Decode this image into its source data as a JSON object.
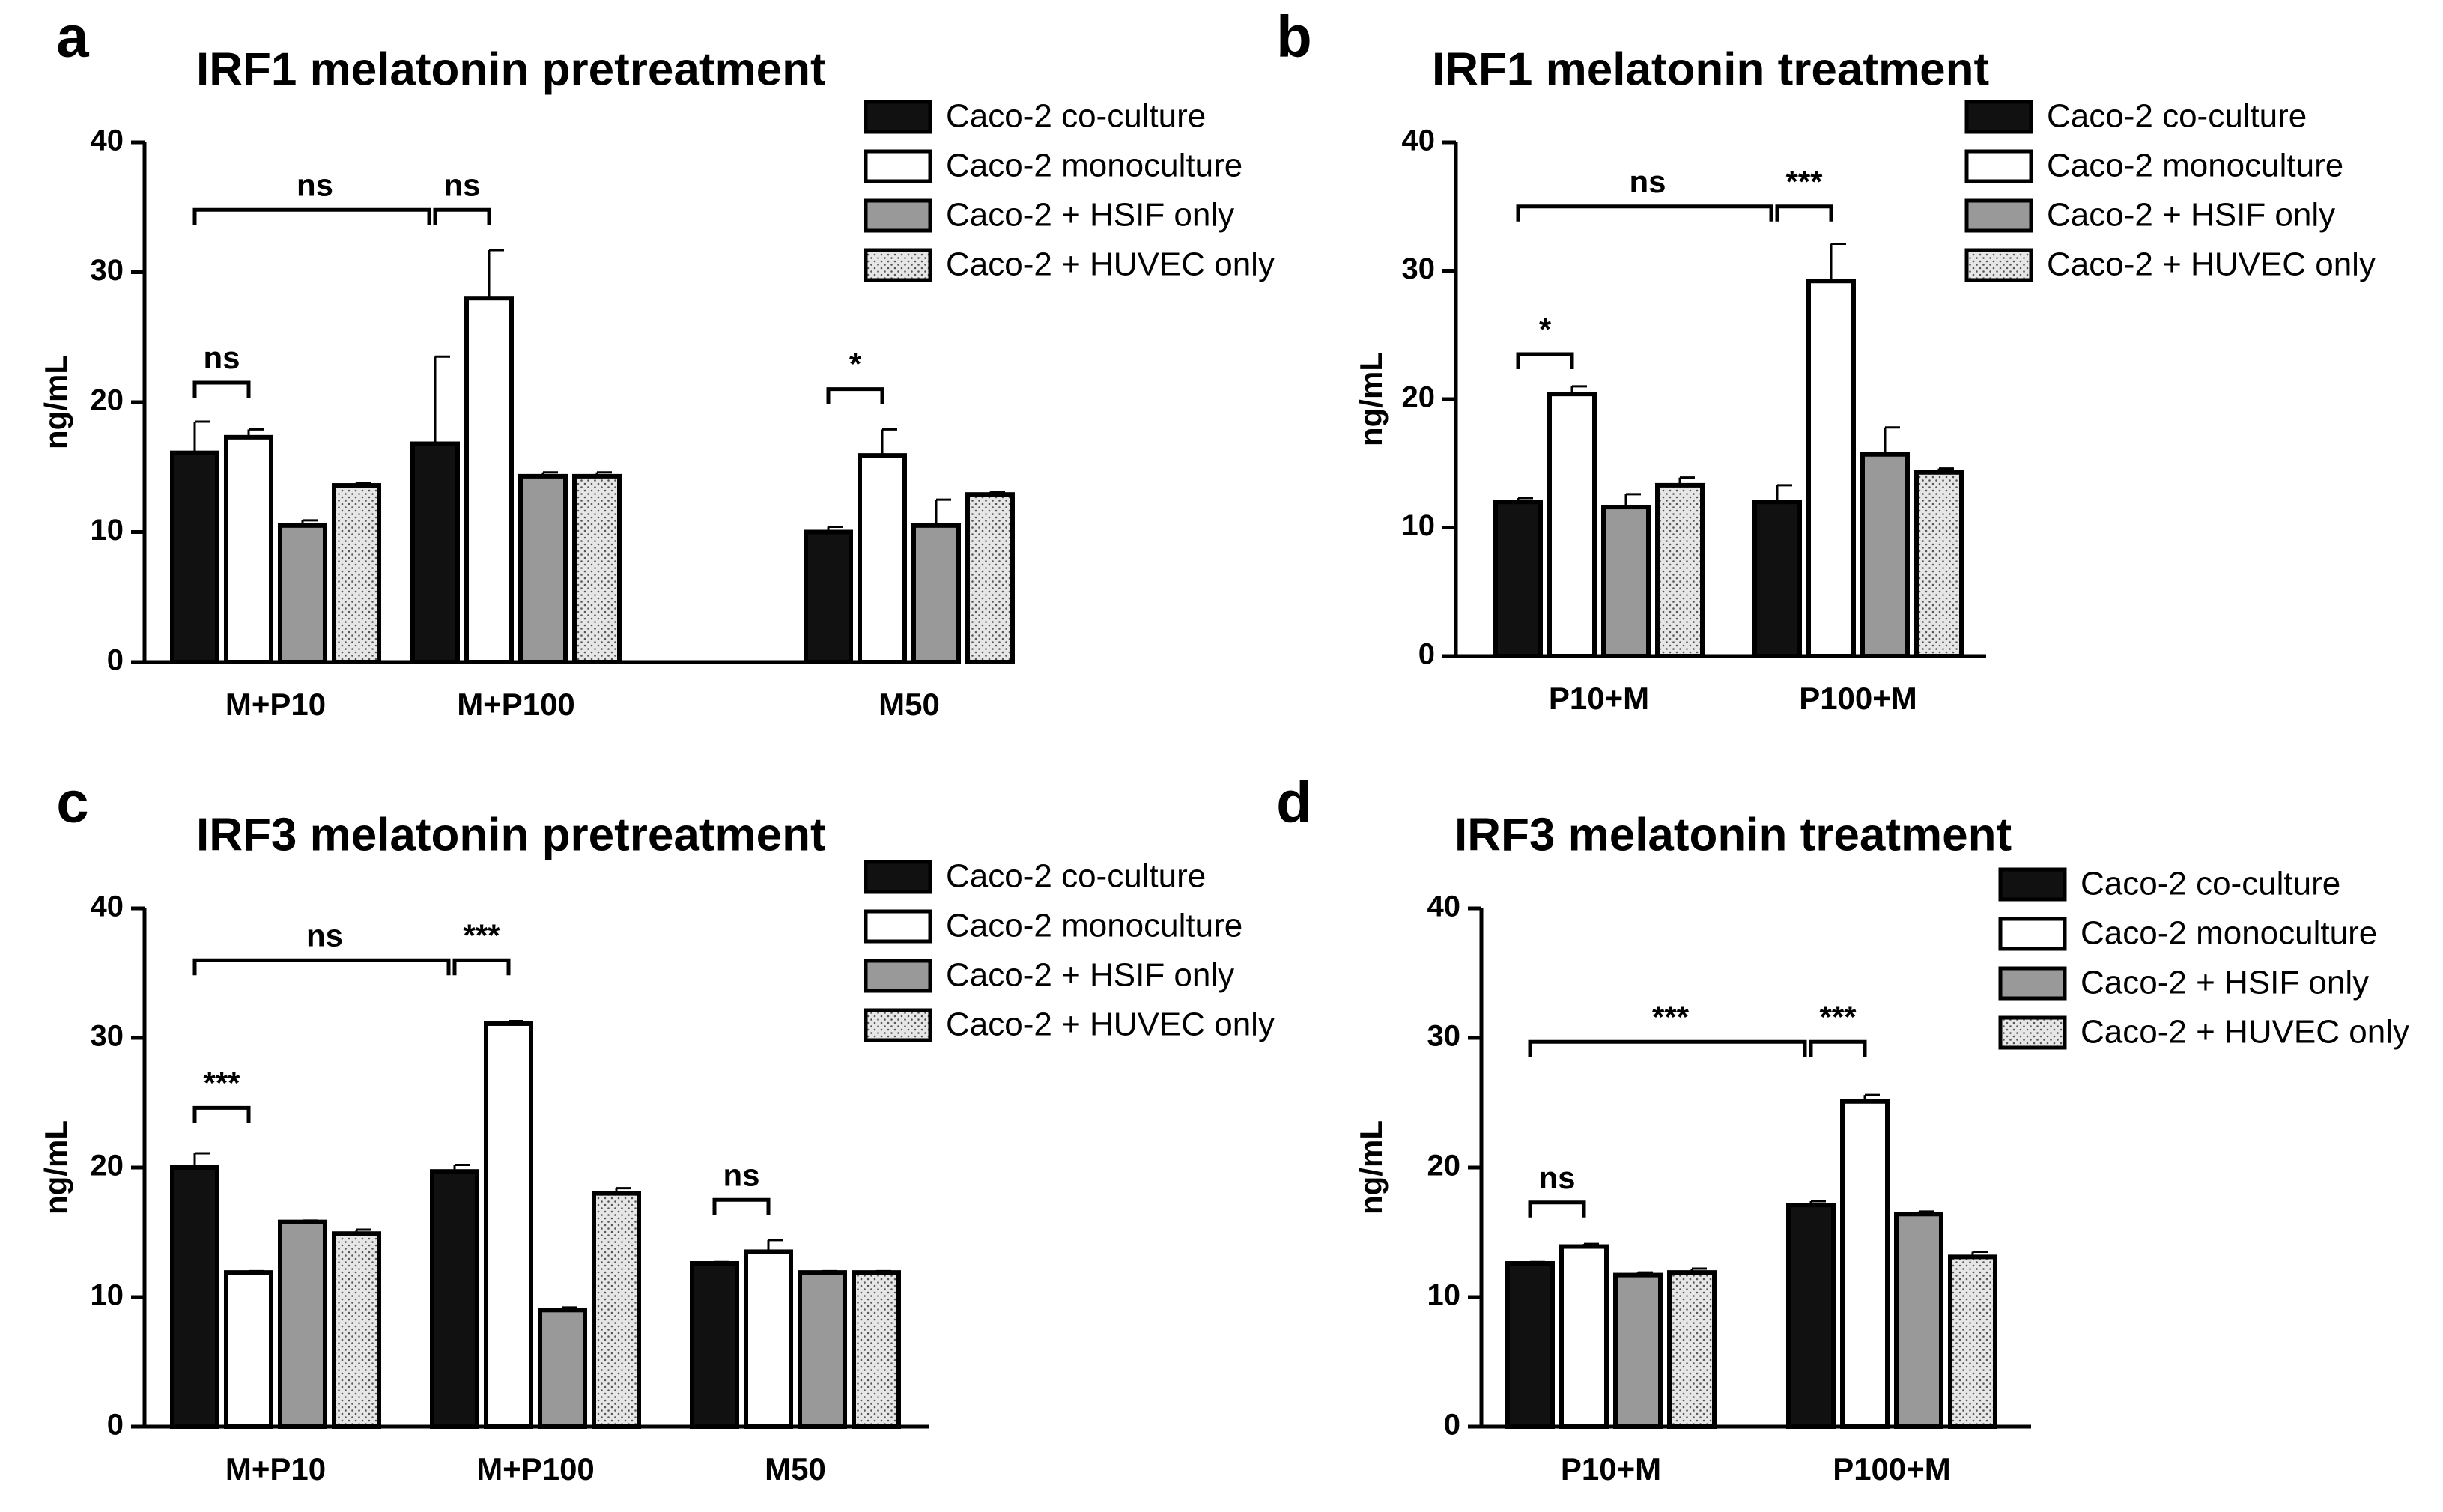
{
  "legend_entries": [
    "Caco-2 co-culture",
    "Caco-2 monoculture",
    "Caco-2 + HSIF only",
    "Caco-2 + HUVEC only"
  ],
  "legend_fills": [
    "#111111",
    "#ffffff",
    "#999999",
    "dots"
  ],
  "chart_data": [
    {
      "panel": "a",
      "type": "bar",
      "title": "IRF1 melatonin pretreatment",
      "ylabel": "ng/mL",
      "xlabel": "",
      "ylim": [
        0,
        40
      ],
      "yticks": [
        0,
        10,
        20,
        30,
        40
      ],
      "categories": [
        "M+P10",
        "M+P100",
        "M50"
      ],
      "series": [
        {
          "name": "Caco-2 co-culture",
          "values": [
            16.1,
            16.8,
            10.0
          ],
          "errors": [
            2.4,
            6.7,
            0.4
          ]
        },
        {
          "name": "Caco-2 monoculture",
          "values": [
            17.3,
            28.0,
            15.9
          ],
          "errors": [
            0.6,
            3.7,
            2.0
          ]
        },
        {
          "name": "Caco-2 + HSIF only",
          "values": [
            10.5,
            14.3,
            10.5
          ],
          "errors": [
            0.4,
            0.3,
            2.0
          ]
        },
        {
          "name": "Caco-2 + HUVEC only",
          "values": [
            13.6,
            14.3,
            12.9
          ],
          "errors": [
            0.2,
            0.3,
            0.2
          ]
        }
      ],
      "annotations": [
        {
          "label": "ns",
          "from": [
            0,
            0
          ],
          "to": [
            0,
            1
          ],
          "level": 21.5
        },
        {
          "label": "ns",
          "from": [
            0,
            0
          ],
          "to": [
            1,
            0
          ],
          "level": 34.8
        },
        {
          "label": "ns",
          "from": [
            1,
            0
          ],
          "to": [
            1,
            1
          ],
          "level": 34.8
        },
        {
          "label": "*",
          "from": [
            2,
            0
          ],
          "to": [
            2,
            1
          ],
          "level": 21.0
        }
      ]
    },
    {
      "panel": "b",
      "type": "bar",
      "title": "IRF1 melatonin treatment",
      "ylabel": "ng/mL",
      "xlabel": "",
      "ylim": [
        0,
        40
      ],
      "yticks": [
        0,
        10,
        20,
        30,
        40
      ],
      "categories": [
        "P10+M",
        "P100+M"
      ],
      "series": [
        {
          "name": "Caco-2 co-culture",
          "values": [
            12.0,
            12.0
          ],
          "errors": [
            0.3,
            1.3
          ]
        },
        {
          "name": "Caco-2 monoculture",
          "values": [
            20.4,
            29.2
          ],
          "errors": [
            0.6,
            2.9
          ]
        },
        {
          "name": "Caco-2 + HSIF only",
          "values": [
            11.6,
            15.7
          ],
          "errors": [
            1.0,
            2.1
          ]
        },
        {
          "name": "Caco-2 + HUVEC only",
          "values": [
            13.3,
            14.3
          ],
          "errors": [
            0.6,
            0.3
          ]
        }
      ],
      "annotations": [
        {
          "label": "*",
          "from": [
            0,
            0
          ],
          "to": [
            0,
            1
          ],
          "level": 23.5
        },
        {
          "label": "ns",
          "from": [
            0,
            0
          ],
          "to": [
            1,
            0
          ],
          "level": 35.0
        },
        {
          "label": "***",
          "from": [
            1,
            0
          ],
          "to": [
            1,
            1
          ],
          "level": 35.0
        }
      ]
    },
    {
      "panel": "c",
      "type": "bar",
      "title": "IRF3 melatonin pretreatment",
      "ylabel": "ng/mL",
      "xlabel": "",
      "ylim": [
        0,
        40
      ],
      "yticks": [
        0,
        10,
        20,
        30,
        40
      ],
      "categories": [
        "M+P10",
        "M+P100",
        "M50"
      ],
      "series": [
        {
          "name": "Caco-2 co-culture",
          "values": [
            20.0,
            19.7,
            12.6
          ],
          "errors": [
            1.1,
            0.5,
            0.1
          ]
        },
        {
          "name": "Caco-2 monoculture",
          "values": [
            11.9,
            31.1,
            13.5
          ],
          "errors": [
            0.1,
            0.2,
            0.9
          ]
        },
        {
          "name": "Caco-2 + HSIF only",
          "values": [
            15.8,
            9.0,
            11.9
          ],
          "errors": [
            0.1,
            0.2,
            0.1
          ]
        },
        {
          "name": "Caco-2 + HUVEC only",
          "values": [
            14.9,
            18.0,
            11.9
          ],
          "errors": [
            0.3,
            0.4,
            0.1
          ]
        }
      ],
      "annotations": [
        {
          "label": "***",
          "from": [
            0,
            0
          ],
          "to": [
            0,
            1
          ],
          "level": 24.6
        },
        {
          "label": "ns",
          "from": [
            0,
            0
          ],
          "to": [
            1,
            0
          ],
          "level": 36.0
        },
        {
          "label": "***",
          "from": [
            1,
            0
          ],
          "to": [
            1,
            1
          ],
          "level": 36.0
        },
        {
          "label": "ns",
          "from": [
            2,
            0
          ],
          "to": [
            2,
            1
          ],
          "level": 17.5
        }
      ]
    },
    {
      "panel": "d",
      "type": "bar",
      "title": "IRF3 melatonin treatment",
      "ylabel": "ng/mL",
      "xlabel": "",
      "ylim": [
        0,
        40
      ],
      "yticks": [
        0,
        10,
        20,
        30,
        40
      ],
      "categories": [
        "P10+M",
        "P100+M"
      ],
      "series": [
        {
          "name": "Caco-2 co-culture",
          "values": [
            12.6,
            17.1
          ],
          "errors": [
            0.1,
            0.3
          ]
        },
        {
          "name": "Caco-2 monoculture",
          "values": [
            13.9,
            25.1
          ],
          "errors": [
            0.2,
            0.5
          ]
        },
        {
          "name": "Caco-2 + HSIF only",
          "values": [
            11.7,
            16.4
          ],
          "errors": [
            0.2,
            0.2
          ]
        },
        {
          "name": "Caco-2 + HUVEC only",
          "values": [
            11.9,
            13.1
          ],
          "errors": [
            0.3,
            0.4
          ]
        }
      ],
      "annotations": [
        {
          "label": "ns",
          "from": [
            0,
            0
          ],
          "to": [
            0,
            1
          ],
          "level": 17.3
        },
        {
          "label": "***",
          "from": [
            0,
            0
          ],
          "to": [
            1,
            0
          ],
          "level": 29.7
        },
        {
          "label": "***",
          "from": [
            1,
            0
          ],
          "to": [
            1,
            1
          ],
          "level": 29.7
        }
      ]
    }
  ]
}
